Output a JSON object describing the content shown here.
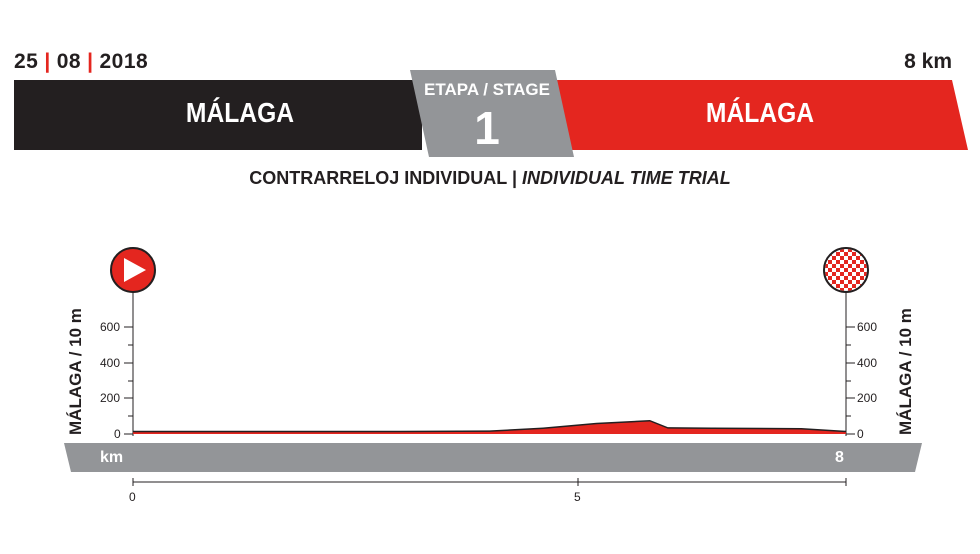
{
  "header": {
    "date_day": "25",
    "date_month": "08",
    "date_year": "2018",
    "distance": "8 km",
    "start_city": "MÁLAGA",
    "finish_city": "MÁLAGA",
    "stage_label": "ETAPA / STAGE",
    "stage_number": "1",
    "subtitle_es": "CONTRARRELOJ INDIVIDUAL |",
    "subtitle_en": "INDIVIDUAL TIME TRIAL"
  },
  "profile": {
    "start_label": "MÁLAGA / 10 m",
    "finish_label": "MÁLAGA / 10 m",
    "altitude_ticks": [
      "600",
      "400",
      "200",
      "0"
    ],
    "distance_unit": "km",
    "total_distance": "8",
    "x_ticks": [
      "0",
      "5"
    ],
    "start_icon": "play-icon",
    "finish_icon": "checkered-flag-icon"
  },
  "colors": {
    "dark": "#231f20",
    "red": "#e4261f",
    "grey": "#939598"
  },
  "chart_data": {
    "type": "area",
    "x": [
      0,
      3.0,
      4.0,
      4.6,
      5.2,
      5.8,
      6.0,
      6.5,
      7.5,
      8.0
    ],
    "y": [
      10,
      10,
      12,
      28,
      55,
      70,
      30,
      28,
      25,
      10
    ],
    "ylim": [
      0,
      600
    ],
    "xlim": [
      0,
      8
    ],
    "xlabel": "km"
  }
}
